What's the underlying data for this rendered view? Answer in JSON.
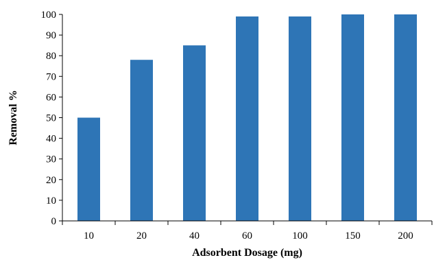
{
  "chart_data": {
    "type": "bar",
    "title": "",
    "xlabel": "Adsorbent Dosage (mg)",
    "ylabel": "Removal %",
    "categories": [
      "10",
      "20",
      "40",
      "60",
      "100",
      "150",
      "200"
    ],
    "values": [
      50,
      78,
      85,
      99,
      99,
      100,
      100
    ],
    "ylim": [
      0,
      100
    ],
    "yticks": [
      0,
      10,
      20,
      30,
      40,
      50,
      60,
      70,
      80,
      90,
      100
    ],
    "grid": false,
    "legend": "none",
    "bar_color": "#2e75b6",
    "axis_color": "#000000"
  }
}
